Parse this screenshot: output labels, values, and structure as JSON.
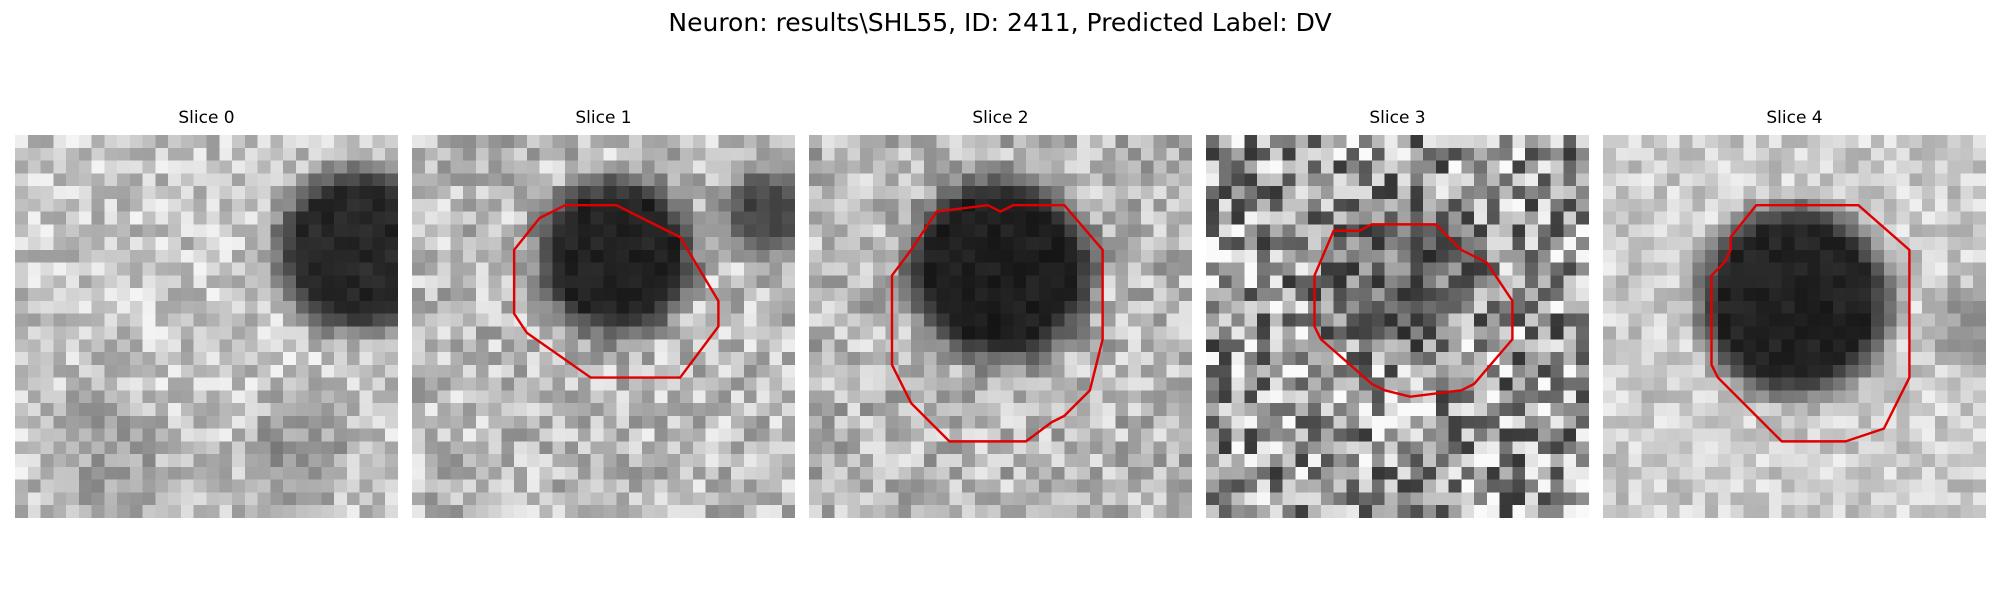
{
  "figure": {
    "suptitle": "Neuron: results\\SHL55, ID: 2411, Predicted Label: DV"
  },
  "panels": [
    {
      "title": "Slice 0"
    },
    {
      "title": "Slice 1"
    },
    {
      "title": "Slice 2"
    },
    {
      "title": "Slice 3"
    },
    {
      "title": "Slice 4"
    }
  ],
  "colors": {
    "contour": "#e00000",
    "background": "#ffffff"
  }
}
